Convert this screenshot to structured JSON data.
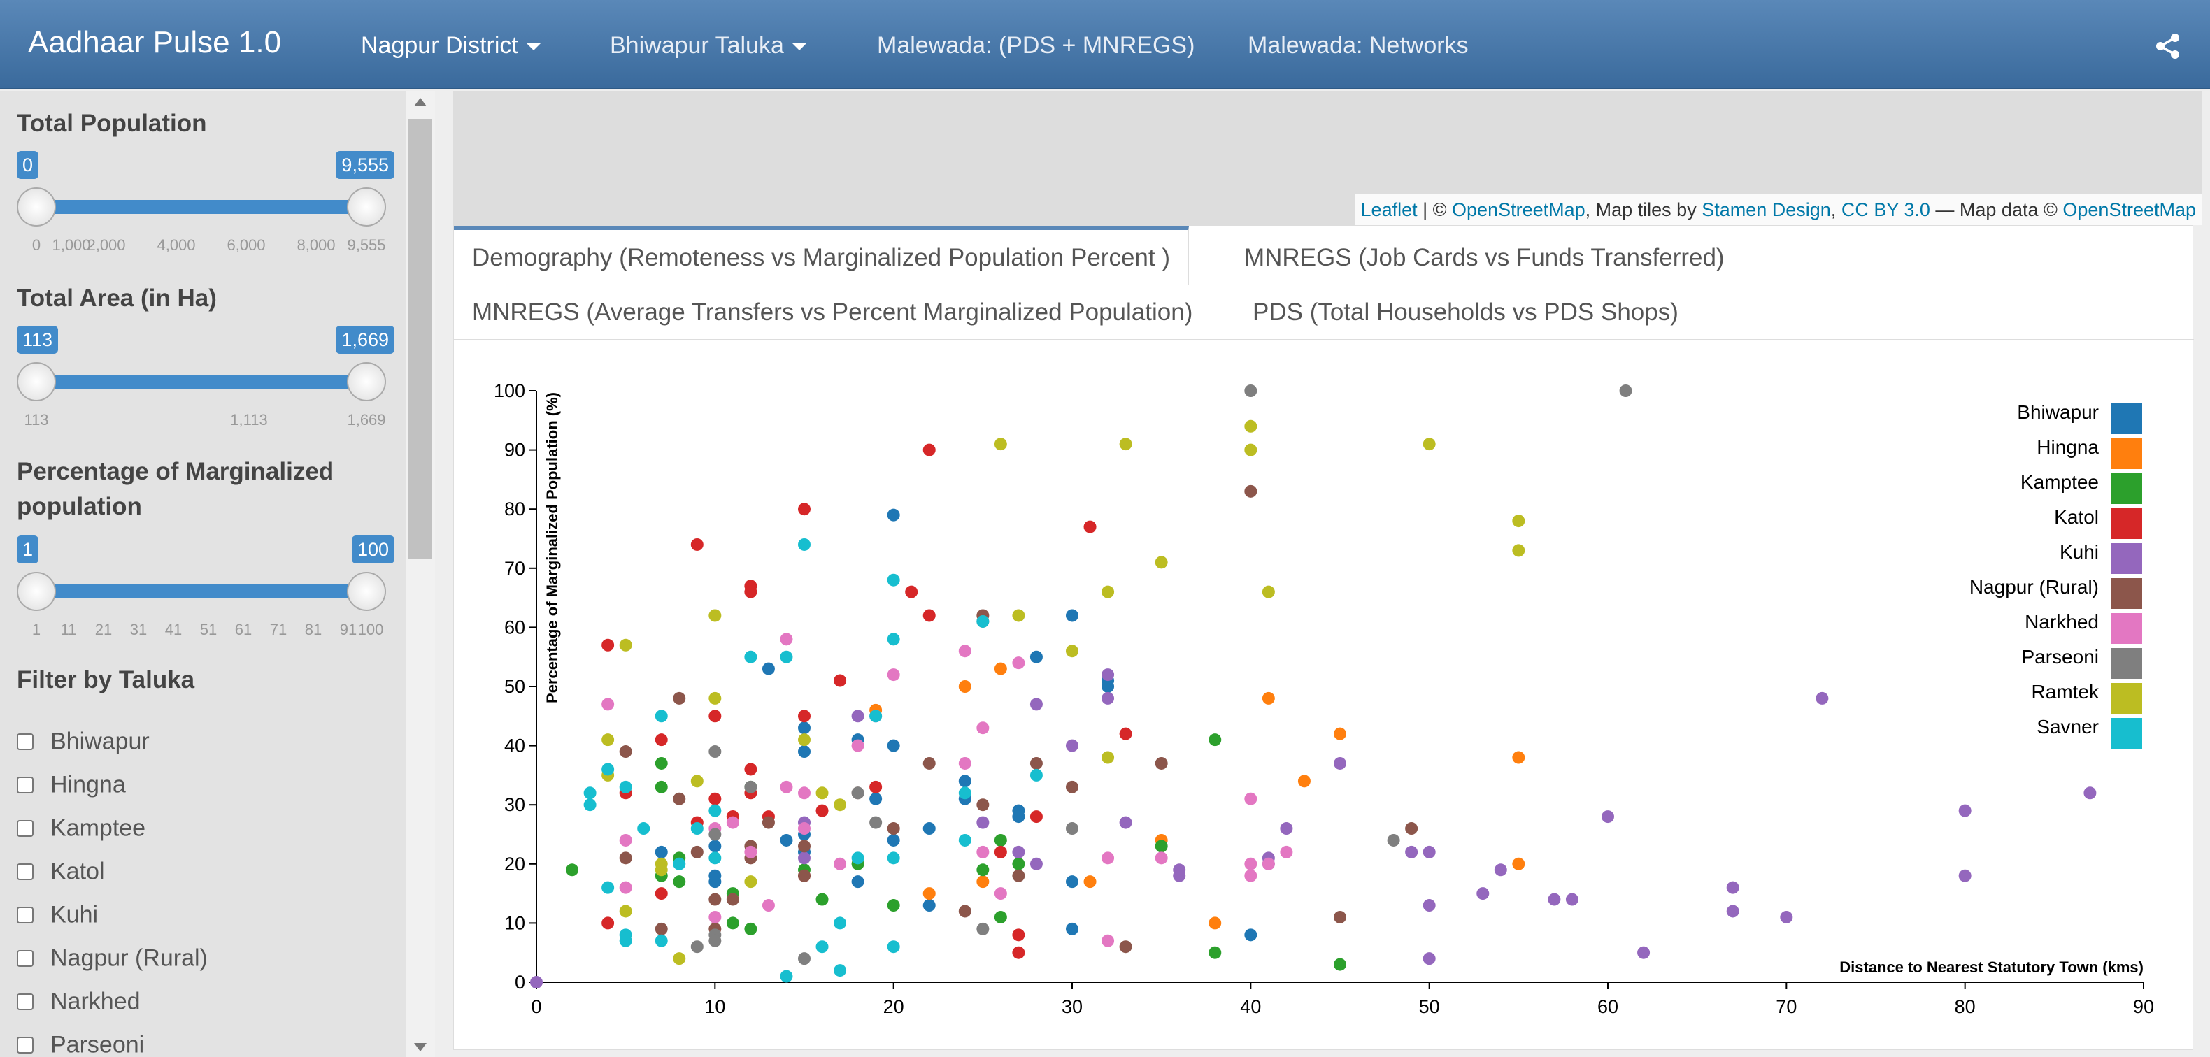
{
  "navbar": {
    "brand": "Aadhaar Pulse 1.0",
    "items": [
      {
        "label": "Nagpur District",
        "dropdown": true
      },
      {
        "label": "Bhiwapur Taluka",
        "dropdown": true
      },
      {
        "label": "Malewada: (PDS + MNREGS)",
        "dropdown": false
      },
      {
        "label": "Malewada: Networks",
        "dropdown": false
      }
    ],
    "share_icon": "share-icon"
  },
  "sidebar": {
    "population": {
      "title": "Total Population",
      "min_label": "0",
      "max_label": "9,555",
      "ticks": [
        "0",
        "1,000",
        "2,000",
        "4,000",
        "6,000",
        "8,000",
        "9,555"
      ],
      "range": [
        0,
        9555
      ]
    },
    "area": {
      "title": "Total Area (in Ha)",
      "min_label": "113",
      "max_label": "1,669",
      "ticks": [
        "113",
        "1,113",
        "1,669"
      ],
      "range": [
        113,
        1669
      ]
    },
    "marginalized": {
      "title_line1": "Percentage of Marginalized",
      "title_line2": "population",
      "min_label": "1",
      "max_label": "100",
      "ticks": [
        "1",
        "11",
        "21",
        "31",
        "41",
        "51",
        "61",
        "71",
        "81",
        "91",
        "100"
      ],
      "range": [
        1,
        100
      ]
    },
    "filter_title": "Filter by Taluka",
    "talukas": [
      "Bhiwapur",
      "Hingna",
      "Kamptee",
      "Katol",
      "Kuhi",
      "Nagpur (Rural)",
      "Narkhed",
      "Parseoni"
    ]
  },
  "map": {
    "attr_leaflet": "Leaflet",
    "attr_sep1": " | © ",
    "attr_osm": "OpenStreetMap",
    "attr_mid": ", Map tiles by ",
    "attr_stamen": "Stamen Design",
    "attr_comma": ", ",
    "attr_cc": "CC BY 3.0",
    "attr_data": " — Map data © ",
    "attr_osm2": "OpenStreetMap"
  },
  "tabs": [
    {
      "label": "Demography (Remoteness vs Marginalized Population Percent )",
      "active": true
    },
    {
      "label": "MNREGS (Job Cards vs Funds Transferred)",
      "active": false
    },
    {
      "label": "MNREGS (Average Transfers vs Percent Marginalized Population)",
      "active": false
    },
    {
      "label": "PDS (Total Households vs PDS Shops)",
      "active": false
    }
  ],
  "chart_data": {
    "type": "scatter",
    "xlabel": "Distance to Nearest Statutory Town (kms)",
    "ylabel": "Percentage of Marginalized Population (%)",
    "xlim": [
      0,
      90
    ],
    "ylim": [
      0,
      100
    ],
    "xticks": [
      0,
      10,
      20,
      30,
      40,
      50,
      60,
      70,
      80,
      90
    ],
    "yticks": [
      0,
      10,
      20,
      30,
      40,
      50,
      60,
      70,
      80,
      90,
      100
    ],
    "grid": false,
    "legend_position": "top-right",
    "series": [
      {
        "name": "Bhiwapur",
        "color": "#1f77b4",
        "points": [
          [
            7,
            22
          ],
          [
            10,
            23
          ],
          [
            10,
            17
          ],
          [
            13,
            53
          ],
          [
            14,
            24
          ],
          [
            15,
            25
          ],
          [
            15,
            43
          ],
          [
            15,
            39
          ],
          [
            18,
            41
          ],
          [
            18,
            17
          ],
          [
            19,
            31
          ],
          [
            20,
            40
          ],
          [
            20,
            24
          ],
          [
            20,
            79
          ],
          [
            22,
            26
          ],
          [
            22,
            13
          ],
          [
            24,
            34
          ],
          [
            24,
            31
          ],
          [
            27,
            29
          ],
          [
            27,
            28
          ],
          [
            28,
            55
          ],
          [
            30,
            62
          ],
          [
            30,
            9
          ],
          [
            30,
            17
          ],
          [
            32,
            51
          ],
          [
            32,
            50
          ],
          [
            40,
            8
          ],
          [
            15,
            22
          ],
          [
            10,
            18
          ]
        ]
      },
      {
        "name": "Hingna",
        "color": "#ff7f0e",
        "points": [
          [
            19,
            46
          ],
          [
            22,
            15
          ],
          [
            24,
            50
          ],
          [
            25,
            17
          ],
          [
            26,
            53
          ],
          [
            31,
            17
          ],
          [
            35,
            24
          ],
          [
            38,
            10
          ],
          [
            41,
            48
          ],
          [
            43,
            34
          ],
          [
            45,
            42
          ],
          [
            55,
            38
          ],
          [
            55,
            20
          ]
        ]
      },
      {
        "name": "Kamptee",
        "color": "#2ca02c",
        "points": [
          [
            2,
            19
          ],
          [
            7,
            37
          ],
          [
            7,
            33
          ],
          [
            7,
            18
          ],
          [
            8,
            17
          ],
          [
            8,
            21
          ],
          [
            11,
            10
          ],
          [
            11,
            15
          ],
          [
            12,
            9
          ],
          [
            15,
            19
          ],
          [
            16,
            14
          ],
          [
            18,
            20
          ],
          [
            20,
            13
          ],
          [
            25,
            19
          ],
          [
            26,
            24
          ],
          [
            26,
            11
          ],
          [
            27,
            20
          ],
          [
            35,
            23
          ],
          [
            38,
            41
          ],
          [
            38,
            5
          ],
          [
            45,
            3
          ],
          [
            12,
            33
          ]
        ]
      },
      {
        "name": "Katol",
        "color": "#d62728",
        "points": [
          [
            4,
            57
          ],
          [
            4,
            10
          ],
          [
            5,
            32
          ],
          [
            7,
            41
          ],
          [
            7,
            15
          ],
          [
            9,
            74
          ],
          [
            9,
            27
          ],
          [
            10,
            31
          ],
          [
            10,
            45
          ],
          [
            11,
            28
          ],
          [
            11,
            28
          ],
          [
            12,
            67
          ],
          [
            12,
            66
          ],
          [
            12,
            36
          ],
          [
            12,
            32
          ],
          [
            13,
            28
          ],
          [
            15,
            80
          ],
          [
            15,
            45
          ],
          [
            15,
            18
          ],
          [
            16,
            29
          ],
          [
            17,
            51
          ],
          [
            19,
            33
          ],
          [
            21,
            66
          ],
          [
            22,
            90
          ],
          [
            22,
            62
          ],
          [
            26,
            22
          ],
          [
            27,
            8
          ],
          [
            27,
            5
          ],
          [
            28,
            28
          ],
          [
            31,
            77
          ],
          [
            33,
            42
          ]
        ]
      },
      {
        "name": "Kuhi",
        "color": "#9467bd",
        "points": [
          [
            0,
            0
          ],
          [
            15,
            27
          ],
          [
            15,
            21
          ],
          [
            18,
            45
          ],
          [
            25,
            27
          ],
          [
            27,
            22
          ],
          [
            28,
            47
          ],
          [
            28,
            20
          ],
          [
            30,
            40
          ],
          [
            32,
            52
          ],
          [
            32,
            48
          ],
          [
            33,
            27
          ],
          [
            36,
            19
          ],
          [
            36,
            18
          ],
          [
            41,
            21
          ],
          [
            41,
            20
          ],
          [
            42,
            26
          ],
          [
            45,
            37
          ],
          [
            49,
            22
          ],
          [
            50,
            22
          ],
          [
            50,
            13
          ],
          [
            50,
            4
          ],
          [
            53,
            15
          ],
          [
            54,
            19
          ],
          [
            57,
            14
          ],
          [
            58,
            14
          ],
          [
            60,
            28
          ],
          [
            62,
            5
          ],
          [
            67,
            16
          ],
          [
            67,
            12
          ],
          [
            70,
            11
          ],
          [
            72,
            48
          ],
          [
            80,
            29
          ],
          [
            80,
            18
          ],
          [
            87,
            32
          ]
        ]
      },
      {
        "name": "Nagpur (Rural)",
        "color": "#8c564b",
        "points": [
          [
            5,
            39
          ],
          [
            5,
            21
          ],
          [
            7,
            9
          ],
          [
            8,
            48
          ],
          [
            8,
            31
          ],
          [
            9,
            22
          ],
          [
            10,
            14
          ],
          [
            10,
            9
          ],
          [
            11,
            14
          ],
          [
            12,
            23
          ],
          [
            12,
            21
          ],
          [
            13,
            27
          ],
          [
            15,
            23
          ],
          [
            15,
            18
          ],
          [
            18,
            32
          ],
          [
            20,
            26
          ],
          [
            22,
            37
          ],
          [
            24,
            12
          ],
          [
            25,
            30
          ],
          [
            25,
            62
          ],
          [
            27,
            18
          ],
          [
            28,
            37
          ],
          [
            30,
            33
          ],
          [
            33,
            6
          ],
          [
            35,
            37
          ],
          [
            40,
            83
          ],
          [
            45,
            11
          ],
          [
            49,
            26
          ]
        ]
      },
      {
        "name": "Narkhed",
        "color": "#e377c2",
        "points": [
          [
            4,
            47
          ],
          [
            5,
            24
          ],
          [
            5,
            16
          ],
          [
            10,
            11
          ],
          [
            10,
            26
          ],
          [
            11,
            27
          ],
          [
            12,
            22
          ],
          [
            13,
            13
          ],
          [
            14,
            58
          ],
          [
            14,
            33
          ],
          [
            15,
            32
          ],
          [
            15,
            26
          ],
          [
            17,
            20
          ],
          [
            18,
            40
          ],
          [
            19,
            45
          ],
          [
            20,
            52
          ],
          [
            24,
            37
          ],
          [
            24,
            56
          ],
          [
            25,
            43
          ],
          [
            25,
            22
          ],
          [
            26,
            15
          ],
          [
            27,
            54
          ],
          [
            32,
            21
          ],
          [
            32,
            7
          ],
          [
            35,
            21
          ],
          [
            40,
            31
          ],
          [
            40,
            20
          ],
          [
            40,
            18
          ],
          [
            41,
            20
          ],
          [
            42,
            22
          ]
        ]
      },
      {
        "name": "Parseoni",
        "color": "#7f7f7f",
        "points": [
          [
            9,
            6
          ],
          [
            10,
            25
          ],
          [
            10,
            39
          ],
          [
            10,
            8
          ],
          [
            10,
            7
          ],
          [
            12,
            33
          ],
          [
            15,
            4
          ],
          [
            18,
            32
          ],
          [
            19,
            27
          ],
          [
            25,
            9
          ],
          [
            25,
            61
          ],
          [
            30,
            26
          ],
          [
            40,
            100
          ],
          [
            48,
            24
          ],
          [
            61,
            100
          ]
        ]
      },
      {
        "name": "Ramtek",
        "color": "#bcbd22",
        "points": [
          [
            4,
            41
          ],
          [
            4,
            35
          ],
          [
            5,
            12
          ],
          [
            5,
            57
          ],
          [
            7,
            20
          ],
          [
            7,
            19
          ],
          [
            8,
            4
          ],
          [
            9,
            34
          ],
          [
            10,
            48
          ],
          [
            10,
            62
          ],
          [
            12,
            17
          ],
          [
            15,
            41
          ],
          [
            16,
            32
          ],
          [
            17,
            30
          ],
          [
            26,
            91
          ],
          [
            27,
            62
          ],
          [
            30,
            56
          ],
          [
            32,
            66
          ],
          [
            32,
            38
          ],
          [
            33,
            91
          ],
          [
            35,
            71
          ],
          [
            40,
            94
          ],
          [
            40,
            90
          ],
          [
            41,
            66
          ],
          [
            50,
            91
          ],
          [
            55,
            78
          ],
          [
            55,
            73
          ]
        ]
      },
      {
        "name": "Savner",
        "color": "#17becf",
        "points": [
          [
            3,
            32
          ],
          [
            3,
            30
          ],
          [
            4,
            36
          ],
          [
            4,
            16
          ],
          [
            5,
            33
          ],
          [
            5,
            8
          ],
          [
            5,
            7
          ],
          [
            6,
            26
          ],
          [
            7,
            45
          ],
          [
            7,
            7
          ],
          [
            8,
            20
          ],
          [
            9,
            26
          ],
          [
            10,
            29
          ],
          [
            10,
            21
          ],
          [
            12,
            55
          ],
          [
            14,
            55
          ],
          [
            14,
            1
          ],
          [
            15,
            74
          ],
          [
            17,
            10
          ],
          [
            17,
            2
          ],
          [
            18,
            21
          ],
          [
            19,
            45
          ],
          [
            20,
            68
          ],
          [
            20,
            58
          ],
          [
            20,
            21
          ],
          [
            20,
            6
          ],
          [
            24,
            32
          ],
          [
            24,
            24
          ],
          [
            25,
            61
          ],
          [
            28,
            35
          ],
          [
            16,
            6
          ]
        ]
      }
    ]
  }
}
